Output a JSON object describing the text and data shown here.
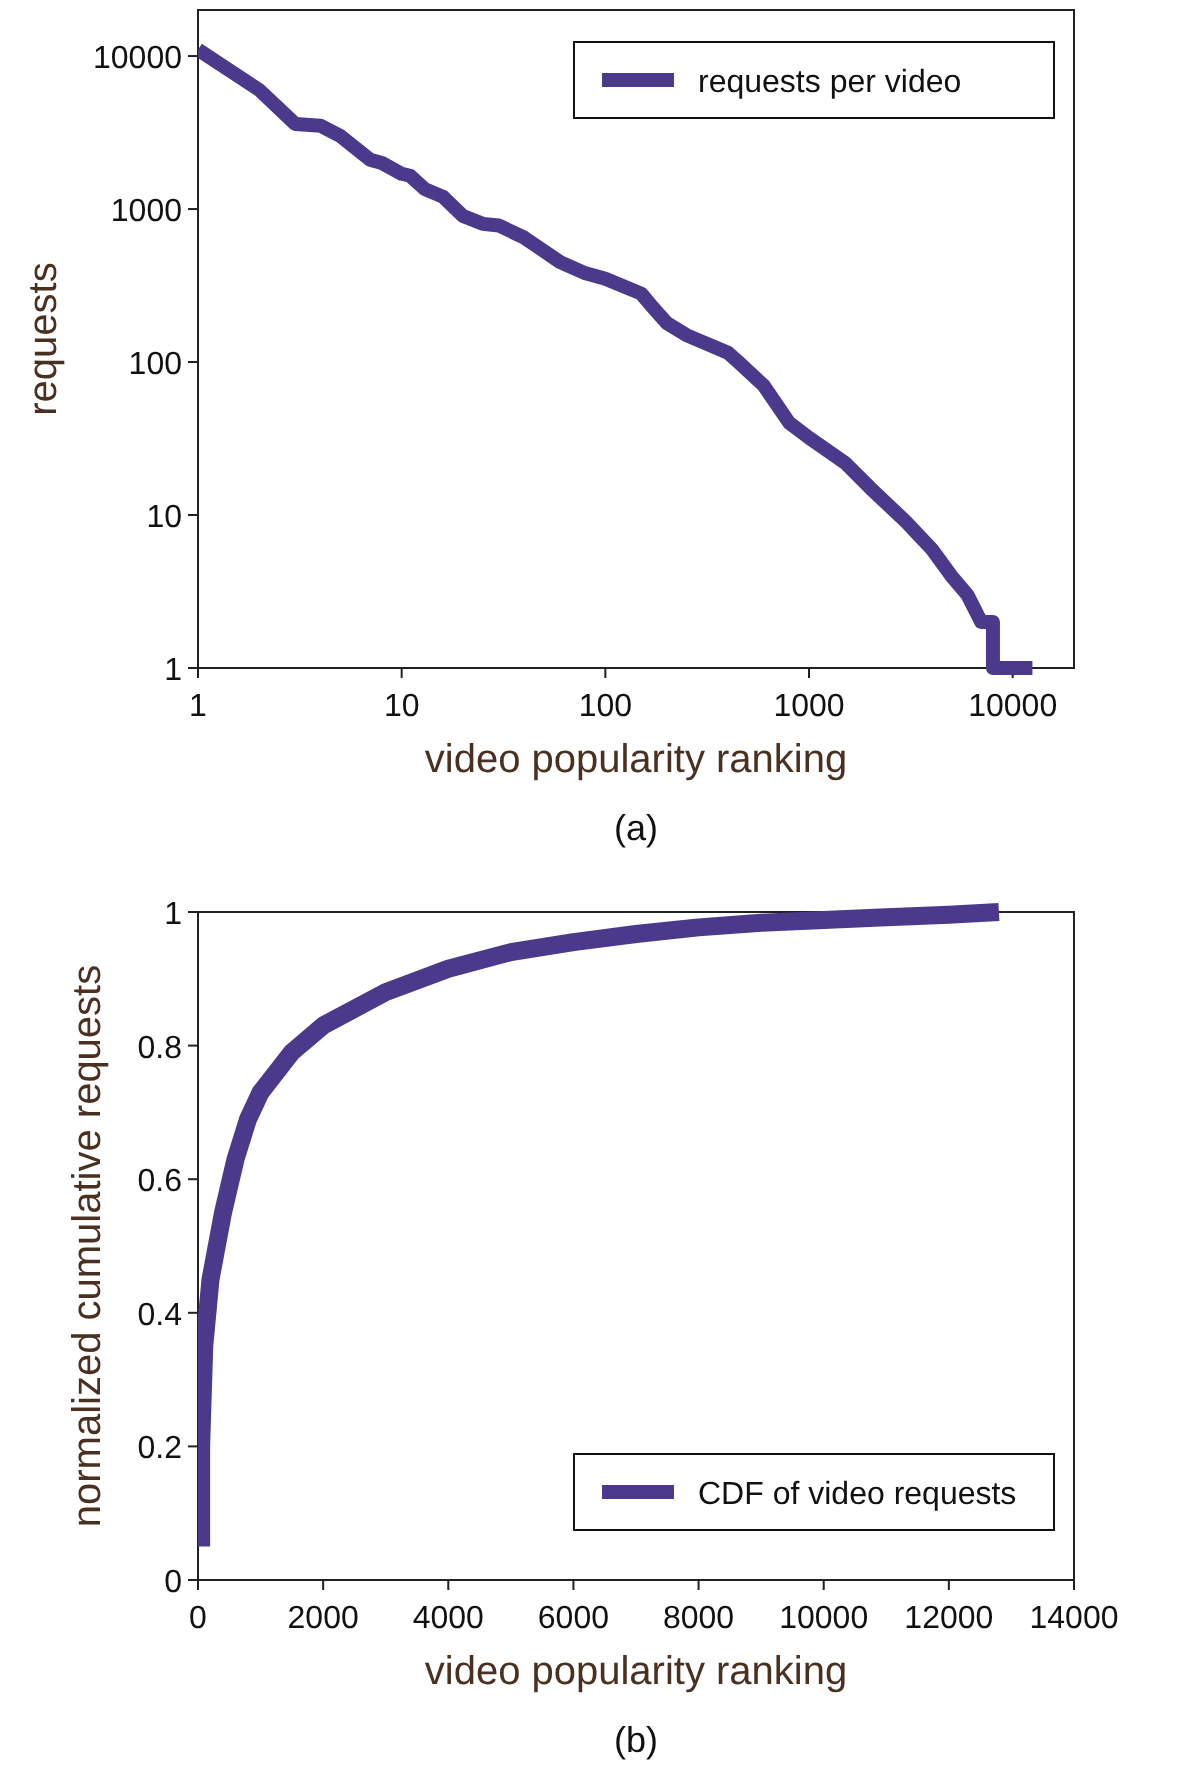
{
  "chart_data": [
    {
      "type": "line",
      "log": "xy",
      "xlabel": "video popularity ranking",
      "ylabel": "requests",
      "xlim": [
        1,
        20000
      ],
      "ylim": [
        1,
        20000
      ],
      "xticks": [
        1,
        10,
        100,
        1000,
        10000
      ],
      "yticks": [
        1,
        10,
        100,
        1000,
        10000
      ],
      "legend": "top right",
      "grid": false,
      "annotations": [
        "(a)"
      ],
      "series": [
        {
          "name": "requests per video",
          "color": "#4b3a8c",
          "x": [
            1,
            2,
            3,
            4,
            5,
            7,
            8,
            10,
            11,
            13,
            16,
            20,
            25,
            30,
            40,
            60,
            80,
            100,
            150,
            170,
            200,
            250,
            400,
            450,
            600,
            800,
            1000,
            1500,
            2000,
            3000,
            4000,
            5000,
            6000,
            7000,
            8000,
            8000,
            12500
          ],
          "values": [
            11000,
            6000,
            3600,
            3500,
            3000,
            2100,
            2000,
            1700,
            1650,
            1350,
            1200,
            900,
            800,
            780,
            650,
            450,
            380,
            350,
            280,
            230,
            180,
            150,
            115,
            100,
            70,
            40,
            32,
            22,
            15,
            9,
            6,
            4,
            3,
            2,
            2,
            1,
            1
          ]
        }
      ]
    },
    {
      "type": "line",
      "xlabel": "video popularity ranking",
      "ylabel": "normalized cumulative requests",
      "xlim": [
        0,
        14000
      ],
      "ylim": [
        0,
        1
      ],
      "xticks": [
        0,
        2000,
        4000,
        6000,
        8000,
        10000,
        12000,
        14000
      ],
      "yticks": [
        0,
        0.2,
        0.4,
        0.6,
        0.8,
        1
      ],
      "legend": "bottom right",
      "grid": false,
      "annotations": [
        "(b)"
      ],
      "series": [
        {
          "name": "CDF of video requests",
          "color": "#4b3a8c",
          "x": [
            50,
            50,
            100,
            200,
            400,
            600,
            800,
            1000,
            1500,
            2000,
            3000,
            4000,
            5000,
            6000,
            7000,
            8000,
            9000,
            10000,
            11000,
            12000,
            12800
          ],
          "values": [
            0.05,
            0.2,
            0.35,
            0.45,
            0.55,
            0.63,
            0.69,
            0.73,
            0.79,
            0.83,
            0.88,
            0.915,
            0.94,
            0.955,
            0.967,
            0.977,
            0.984,
            0.988,
            0.992,
            0.996,
            1.0
          ]
        }
      ]
    }
  ]
}
